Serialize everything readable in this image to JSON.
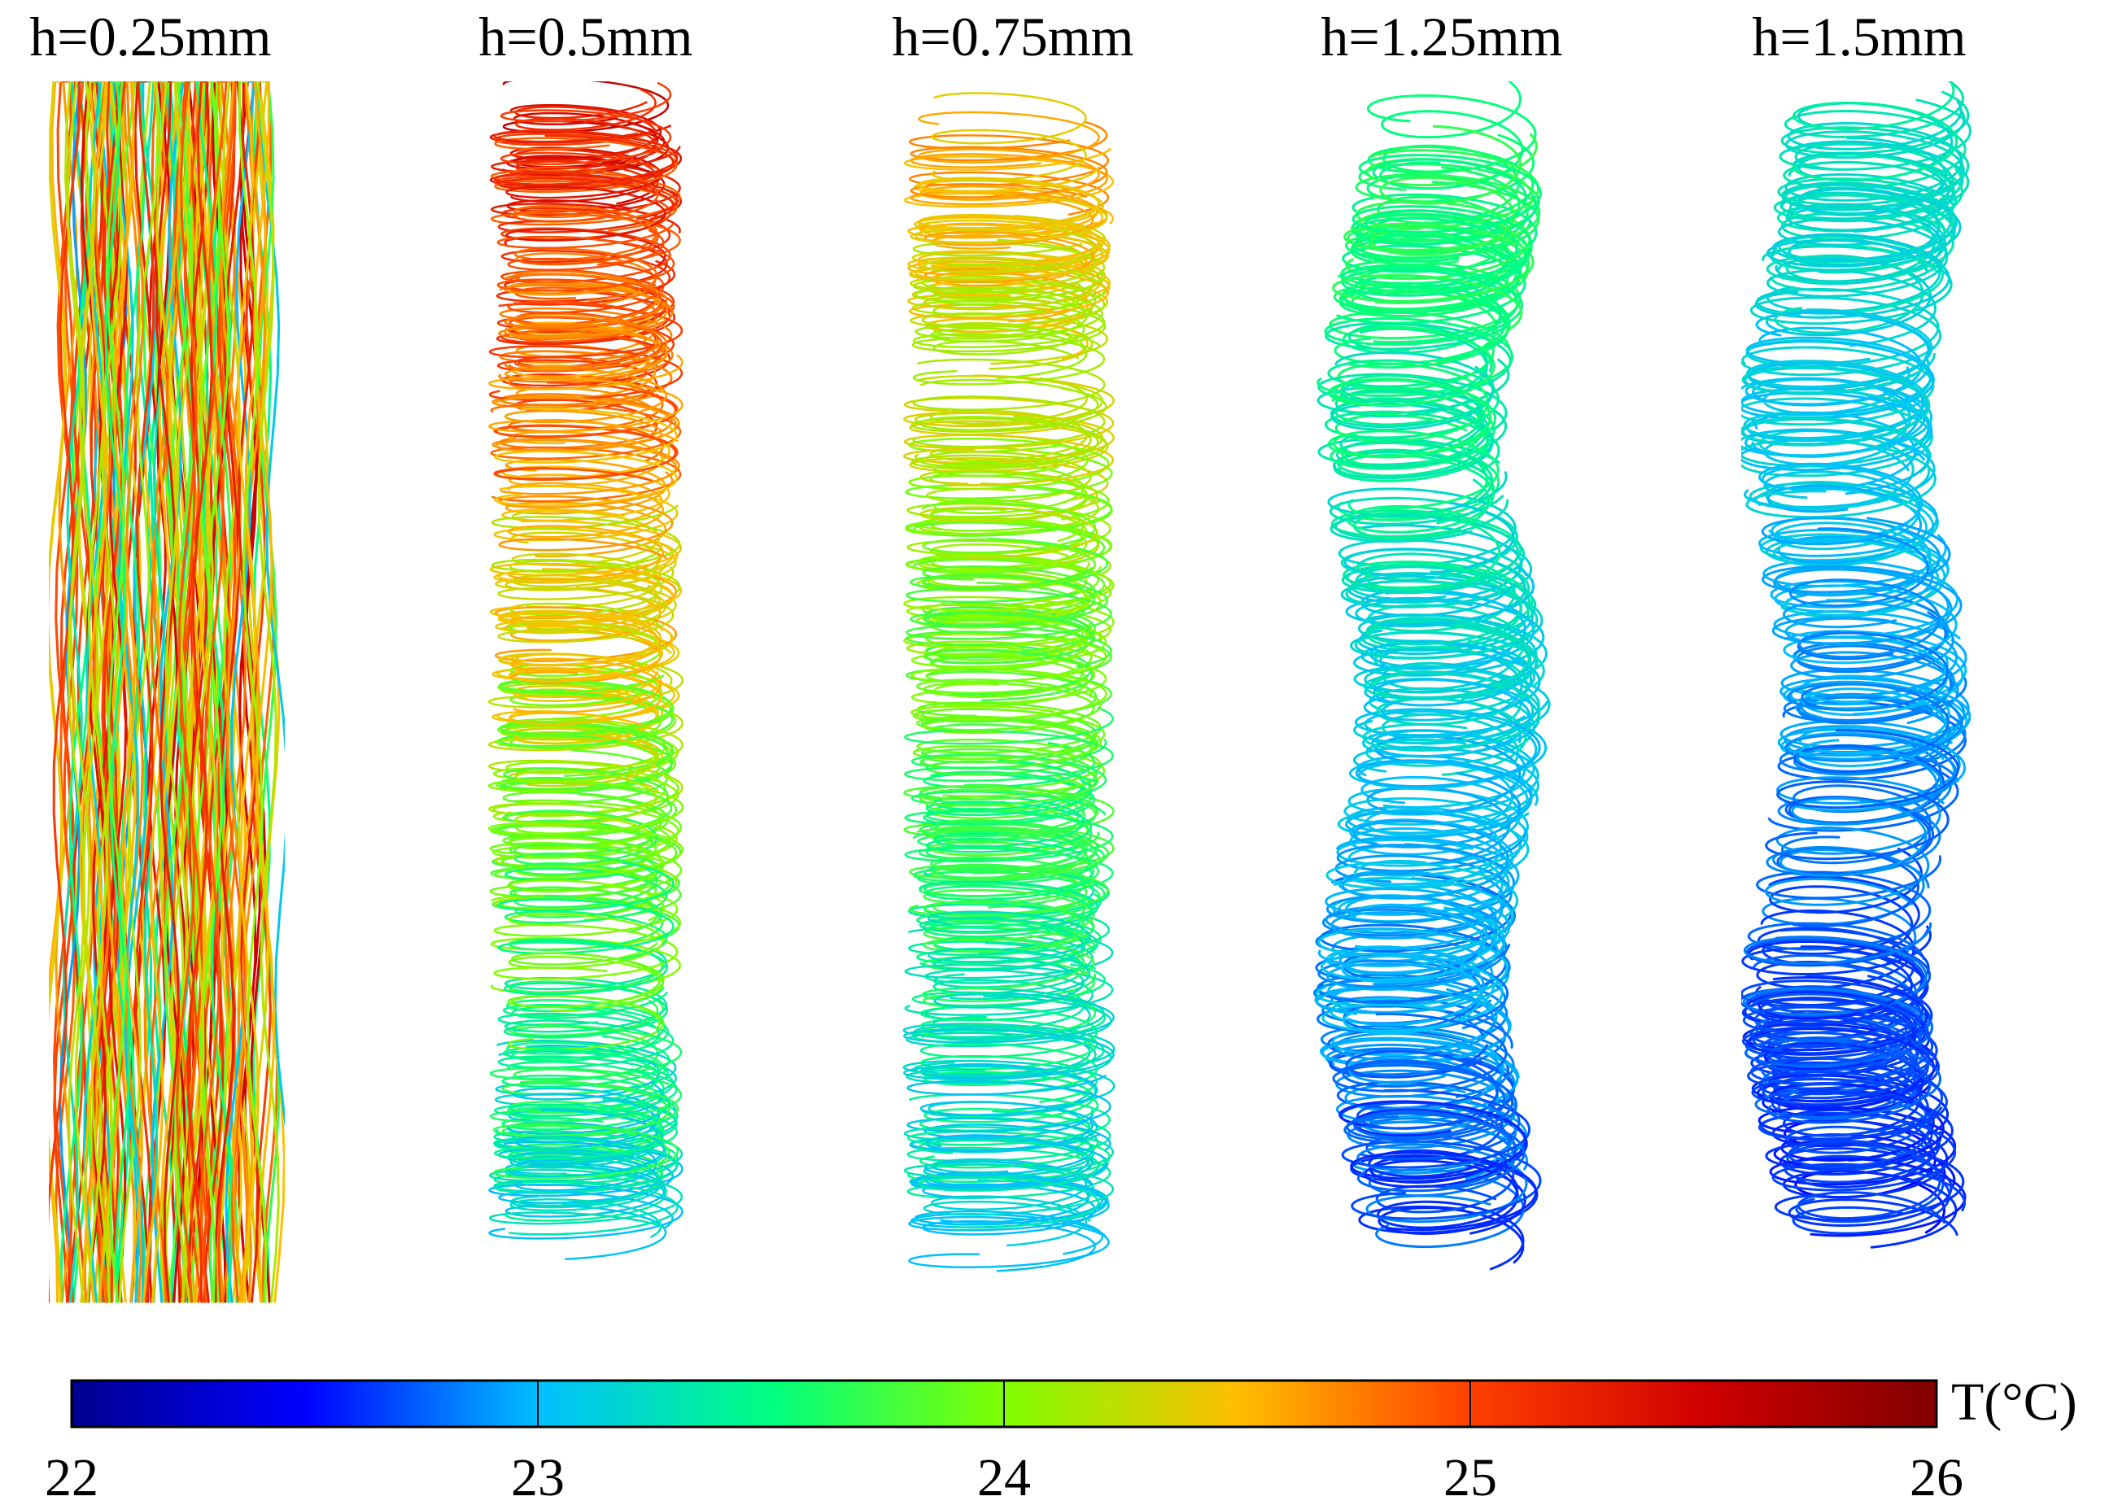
{
  "figure": {
    "panels": [
      {
        "title": "h=0.25mm",
        "h_mm": 0.25,
        "temperature_range_C": [
          22.9,
          25.9
        ]
      },
      {
        "title": "h=0.5mm",
        "h_mm": 0.5,
        "temperature_range_C": [
          23.0,
          25.6
        ]
      },
      {
        "title": "h=0.75mm",
        "h_mm": 0.75,
        "temperature_range_C": [
          23.0,
          24.8
        ]
      },
      {
        "title": "h=1.25mm",
        "h_mm": 1.25,
        "temperature_range_C": [
          22.6,
          23.8
        ]
      },
      {
        "title": "h=1.5mm",
        "h_mm": 1.5,
        "temperature_range_C": [
          22.5,
          23.4
        ]
      }
    ],
    "colorbar": {
      "label": "T(°C)",
      "min": 22,
      "max": 26,
      "ticks": [
        "22",
        "23",
        "24",
        "25",
        "26"
      ],
      "colors": [
        "#00008f",
        "#0000ff",
        "#00bfff",
        "#00ff80",
        "#80ff00",
        "#ffbf00",
        "#ff4000",
        "#d00000",
        "#800000"
      ]
    }
  }
}
